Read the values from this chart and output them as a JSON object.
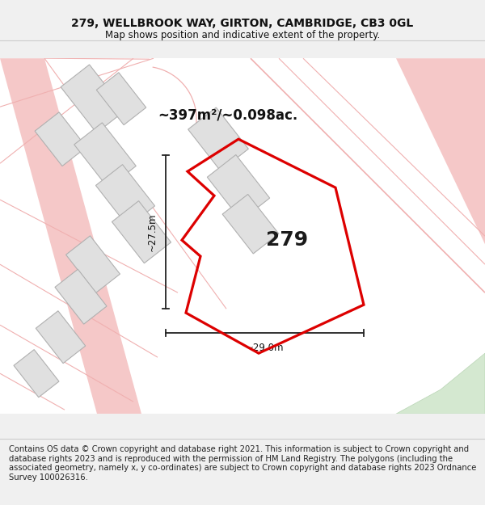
{
  "title_line1": "279, WELLBROOK WAY, GIRTON, CAMBRIDGE, CB3 0GL",
  "title_line2": "Map shows position and indicative extent of the property.",
  "footer_text": "Contains OS data © Crown copyright and database right 2021. This information is subject to Crown copyright and database rights 2023 and is reproduced with the permission of HM Land Registry. The polygons (including the associated geometry, namely x, y co-ordinates) are subject to Crown copyright and database rights 2023 Ordnance Survey 100026316.",
  "area_label": "~397m²/~0.098ac.",
  "property_number": "279",
  "dim_width": "~29.0m",
  "dim_height": "~27.5m",
  "title_fontsize": 10,
  "subtitle_fontsize": 8.5,
  "footer_fontsize": 7.2,
  "map_bg": "#ffffff",
  "building_fill": "#e0e0e0",
  "building_edge": "#b0b0b0",
  "road_fill": "#f5c8c8",
  "road_edge": "#e8a8a8",
  "road_line": "#f0b0b0",
  "green_fill": "#d4e8d0",
  "red_prop": "#dd0000"
}
